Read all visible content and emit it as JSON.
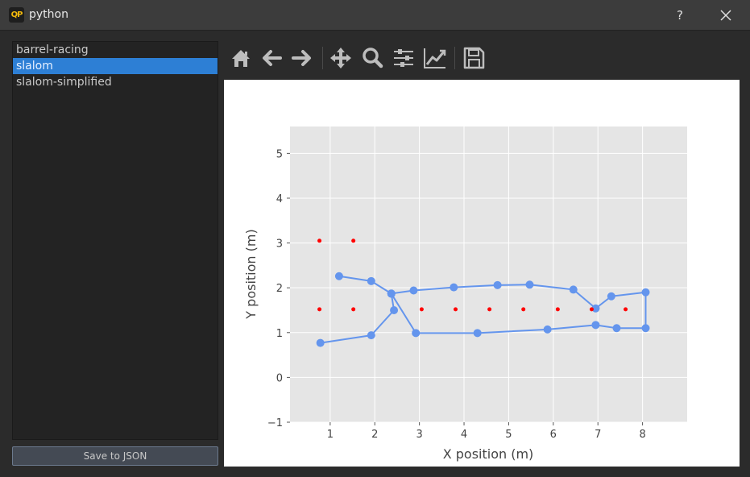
{
  "window": {
    "title": "python",
    "icon_text": "QP",
    "help_label": "?"
  },
  "sidebar": {
    "items": [
      {
        "label": "barrel-racing",
        "selected": false
      },
      {
        "label": "slalom",
        "selected": true
      },
      {
        "label": "slalom-simplified",
        "selected": false
      }
    ],
    "save_label": "Save to JSON"
  },
  "toolbar": {
    "tools": [
      "home-icon",
      "back-arrow-icon",
      "forward-arrow-icon",
      "pan-icon",
      "zoom-icon",
      "configure-subplots-icon",
      "edit-axis-icon",
      "save-icon"
    ]
  },
  "colors": {
    "path": "#6495ed",
    "markers": "#ff0000",
    "plot_bg": "#e5e5e5",
    "selection": "#2d7fd5"
  },
  "chart_data": {
    "type": "scatter",
    "xlabel": "X position (m)",
    "ylabel": "Y position (m)",
    "xlim": [
      0.1,
      9.0
    ],
    "ylim": [
      -1,
      5.6
    ],
    "xticks": [
      1,
      2,
      3,
      4,
      5,
      6,
      7,
      8
    ],
    "yticks": [
      -1,
      0,
      1,
      2,
      3,
      4,
      5
    ],
    "grid": true,
    "series": [
      {
        "style": "line-markers",
        "x": [
          0.78,
          1.92,
          2.43,
          2.37,
          1.92,
          1.2,
          null,
          2.37,
          2.87,
          3.77,
          4.75,
          5.47,
          6.45,
          6.95,
          7.3,
          8.07,
          8.07,
          7.42,
          6.95,
          5.87,
          4.3,
          2.92,
          2.37
        ],
        "y": [
          0.77,
          0.94,
          1.5,
          1.87,
          2.15,
          2.26,
          null,
          1.87,
          1.94,
          2.01,
          2.06,
          2.07,
          1.96,
          1.54,
          1.81,
          1.9,
          1.1,
          1.1,
          1.17,
          1.07,
          0.99,
          0.99,
          1.87
        ]
      },
      {
        "style": "dots",
        "x": [
          0.76,
          1.52,
          0.76,
          1.52,
          3.05,
          3.81,
          4.57,
          5.33,
          6.1,
          6.86,
          7.62
        ],
        "y": [
          3.05,
          3.05,
          1.52,
          1.52,
          1.52,
          1.52,
          1.52,
          1.52,
          1.52,
          1.52,
          1.52
        ]
      }
    ]
  }
}
